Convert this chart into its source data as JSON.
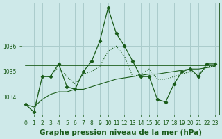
{
  "xlabel": "Graphe pression niveau de la mer (hPa)",
  "background_color": "#cee9e9",
  "grid_color": "#aacccc",
  "line_color": "#1a5c1a",
  "x": [
    0,
    1,
    2,
    3,
    4,
    5,
    6,
    7,
    8,
    9,
    10,
    11,
    12,
    13,
    14,
    15,
    16,
    17,
    18,
    19,
    20,
    21,
    22,
    23
  ],
  "y_dotted": [
    1033.7,
    1033.4,
    1034.8,
    1034.8,
    1035.2,
    1034.8,
    1034.5,
    1034.9,
    1035.0,
    1035.2,
    1035.8,
    1036.0,
    1035.6,
    1034.8,
    1034.9,
    1035.1,
    1034.7,
    1034.7,
    1034.8,
    1034.9,
    1035.0,
    1034.9,
    1035.2,
    1035.2
  ],
  "y_spiky": [
    1033.7,
    1033.4,
    1034.8,
    1034.8,
    1035.3,
    1034.4,
    1034.3,
    1035.0,
    1035.4,
    1036.2,
    1037.5,
    1036.5,
    1036.0,
    1035.4,
    1034.8,
    1034.8,
    1033.9,
    1033.8,
    1034.5,
    1035.0,
    1035.1,
    1034.8,
    1035.3,
    1035.3
  ],
  "y_flat": [
    1035.25,
    1035.25,
    1035.25,
    1035.25,
    1035.25,
    1035.25,
    1035.25,
    1035.25,
    1035.25,
    1035.25,
    1035.25,
    1035.25,
    1035.25,
    1035.25,
    1035.25,
    1035.25,
    1035.25,
    1035.25,
    1035.25,
    1035.25,
    1035.25,
    1035.25,
    1035.25,
    1035.25
  ],
  "y_trend": [
    1033.7,
    1033.6,
    1033.9,
    1034.1,
    1034.2,
    1034.2,
    1034.3,
    1034.3,
    1034.4,
    1034.5,
    1034.6,
    1034.7,
    1034.75,
    1034.8,
    1034.85,
    1034.9,
    1034.9,
    1034.95,
    1035.0,
    1035.05,
    1035.1,
    1035.1,
    1035.15,
    1035.2
  ],
  "ylim": [
    1033.3,
    1037.7
  ],
  "yticks": [
    1034,
    1035,
    1036
  ],
  "xtick_labels": [
    "0",
    "1",
    "2",
    "3",
    "4",
    "5",
    "6",
    "7",
    "8",
    "9",
    "10",
    "11",
    "12",
    "13",
    "14",
    "15",
    "16",
    "17",
    "18",
    "19",
    "20",
    "21",
    "22",
    "23"
  ],
  "tick_fontsize": 5.5,
  "xlabel_fontsize": 7.5
}
